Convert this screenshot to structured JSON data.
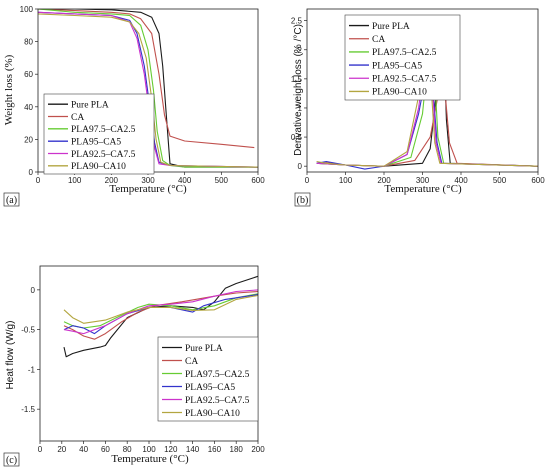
{
  "chart_data": [
    {
      "id": "a",
      "type": "line",
      "panel_label": "(a)",
      "xlabel": "Temperature (°C)",
      "ylabel": "Weight loss (%)",
      "xlim": [
        0,
        600
      ],
      "ylim": [
        0,
        100
      ],
      "xticks": [
        0,
        100,
        200,
        300,
        400,
        500,
        600
      ],
      "yticks": [
        0,
        20,
        40,
        60,
        80,
        100
      ],
      "legend_position": "bottom-left",
      "series": [
        {
          "name": "Pure PLA",
          "color": "#1a1a1a",
          "points": [
            [
              0,
              100
            ],
            [
              100,
              100
            ],
            [
              200,
              99.5
            ],
            [
              280,
              98
            ],
            [
              310,
              95
            ],
            [
              330,
              85
            ],
            [
              340,
              65
            ],
            [
              350,
              35
            ],
            [
              360,
              5
            ],
            [
              400,
              3
            ],
            [
              600,
              3
            ]
          ]
        },
        {
          "name": "CA",
          "color": "#c0504d",
          "points": [
            [
              0,
              100
            ],
            [
              100,
              99
            ],
            [
              200,
              98
            ],
            [
              250,
              97
            ],
            [
              280,
              94
            ],
            [
              310,
              85
            ],
            [
              330,
              60
            ],
            [
              345,
              35
            ],
            [
              360,
              22
            ],
            [
              400,
              19
            ],
            [
              500,
              17
            ],
            [
              590,
              15
            ]
          ]
        },
        {
          "name": "PLA97.5–CA2.5",
          "color": "#66cc33",
          "points": [
            [
              0,
              100
            ],
            [
              100,
              98
            ],
            [
              200,
              97
            ],
            [
              250,
              96
            ],
            [
              280,
              90
            ],
            [
              300,
              75
            ],
            [
              315,
              50
            ],
            [
              325,
              25
            ],
            [
              340,
              7
            ],
            [
              360,
              4
            ],
            [
              400,
              3
            ],
            [
              600,
              3
            ]
          ]
        },
        {
          "name": "PLA95–CA5",
          "color": "#3333cc",
          "points": [
            [
              0,
              98
            ],
            [
              100,
              97
            ],
            [
              200,
              96
            ],
            [
              250,
              93
            ],
            [
              270,
              85
            ],
            [
              290,
              65
            ],
            [
              305,
              40
            ],
            [
              318,
              18
            ],
            [
              330,
              6
            ],
            [
              360,
              4
            ],
            [
              600,
              3
            ]
          ]
        },
        {
          "name": "PLA92.5–CA7.5",
          "color": "#cc33cc",
          "points": [
            [
              0,
              98
            ],
            [
              100,
              97
            ],
            [
              200,
              96
            ],
            [
              250,
              92
            ],
            [
              270,
              82
            ],
            [
              290,
              60
            ],
            [
              305,
              35
            ],
            [
              318,
              15
            ],
            [
              330,
              5
            ],
            [
              360,
              4
            ],
            [
              600,
              3
            ]
          ]
        },
        {
          "name": "PLA90–CA10",
          "color": "#b3a640",
          "points": [
            [
              0,
              97
            ],
            [
              100,
              96
            ],
            [
              200,
              95
            ],
            [
              250,
              92
            ],
            [
              275,
              85
            ],
            [
              295,
              70
            ],
            [
              310,
              45
            ],
            [
              322,
              20
            ],
            [
              335,
              6
            ],
            [
              360,
              4
            ],
            [
              600,
              3
            ]
          ]
        }
      ]
    },
    {
      "id": "b",
      "type": "line",
      "panel_label": "(b)",
      "xlabel": "Temperature (°C)",
      "ylabel": "Derivative weight loss (% /°C)",
      "xlim": [
        0,
        600
      ],
      "ylim": [
        -0.1,
        2.7
      ],
      "xticks": [
        0,
        100,
        200,
        300,
        400,
        500,
        600
      ],
      "yticks": [
        0.0,
        0.5,
        1.0,
        1.5,
        2.0,
        2.5
      ],
      "legend_position": "top-right",
      "series": [
        {
          "name": "Pure PLA",
          "color": "#1a1a1a",
          "points": [
            [
              25,
              0.05
            ],
            [
              100,
              0.02
            ],
            [
              200,
              0
            ],
            [
              300,
              0.05
            ],
            [
              320,
              0.3
            ],
            [
              335,
              1.2
            ],
            [
              345,
              2.3
            ],
            [
              350,
              2.55
            ],
            [
              355,
              2.2
            ],
            [
              362,
              0.8
            ],
            [
              372,
              0.05
            ],
            [
              600,
              0
            ]
          ]
        },
        {
          "name": "CA",
          "color": "#c0504d",
          "points": [
            [
              25,
              0.05
            ],
            [
              50,
              0.06
            ],
            [
              100,
              0.02
            ],
            [
              200,
              0
            ],
            [
              280,
              0.1
            ],
            [
              320,
              0.5
            ],
            [
              340,
              1.2
            ],
            [
              350,
              1.6
            ],
            [
              357,
              1.4
            ],
            [
              370,
              0.4
            ],
            [
              390,
              0.05
            ],
            [
              600,
              0
            ]
          ]
        },
        {
          "name": "PLA97.5–CA2.5",
          "color": "#66cc33",
          "points": [
            [
              25,
              0.05
            ],
            [
              100,
              0.02
            ],
            [
              200,
              0
            ],
            [
              270,
              0.15
            ],
            [
              300,
              0.9
            ],
            [
              315,
              1.9
            ],
            [
              322,
              2.45
            ],
            [
              328,
              2.0
            ],
            [
              340,
              0.5
            ],
            [
              355,
              0.05
            ],
            [
              600,
              0
            ]
          ]
        },
        {
          "name": "PLA95–CA5",
          "color": "#3333cc",
          "points": [
            [
              25,
              0.05
            ],
            [
              50,
              0.08
            ],
            [
              100,
              0.02
            ],
            [
              150,
              -0.05
            ],
            [
              200,
              0
            ],
            [
              260,
              0.2
            ],
            [
              290,
              0.9
            ],
            [
              310,
              1.6
            ],
            [
              318,
              1.9
            ],
            [
              325,
              1.5
            ],
            [
              338,
              0.4
            ],
            [
              350,
              0.05
            ],
            [
              600,
              0
            ]
          ]
        },
        {
          "name": "PLA92.5–CA7.5",
          "color": "#cc33cc",
          "points": [
            [
              25,
              0.05
            ],
            [
              100,
              0.02
            ],
            [
              200,
              0
            ],
            [
              260,
              0.2
            ],
            [
              290,
              1.0
            ],
            [
              308,
              1.9
            ],
            [
              315,
              2.2
            ],
            [
              322,
              1.7
            ],
            [
              335,
              0.4
            ],
            [
              348,
              0.05
            ],
            [
              600,
              0
            ]
          ]
        },
        {
          "name": "PLA90–CA10",
          "color": "#b3a640",
          "points": [
            [
              25,
              0.08
            ],
            [
              50,
              0.05
            ],
            [
              100,
              0.02
            ],
            [
              200,
              0
            ],
            [
              260,
              0.25
            ],
            [
              290,
              1.2
            ],
            [
              305,
              1.95
            ],
            [
              312,
              2.1
            ],
            [
              320,
              1.6
            ],
            [
              332,
              0.4
            ],
            [
              345,
              0.05
            ],
            [
              600,
              0
            ]
          ]
        }
      ]
    },
    {
      "id": "c",
      "type": "line",
      "panel_label": "(c)",
      "xlabel": "Temperature (°C)",
      "ylabel": "Heat flow (W/g)",
      "xlim": [
        0,
        200
      ],
      "ylim": [
        -1.9,
        0.3
      ],
      "xticks": [
        0,
        20,
        40,
        60,
        80,
        100,
        120,
        140,
        160,
        180,
        200
      ],
      "yticks": [
        -1.5,
        -1.0,
        -0.5,
        0.0
      ],
      "legend_position": "bottom-right",
      "series": [
        {
          "name": "Pure PLA",
          "color": "#1a1a1a",
          "points": [
            [
              22,
              -0.72
            ],
            [
              24,
              -0.84
            ],
            [
              30,
              -0.8
            ],
            [
              40,
              -0.76
            ],
            [
              55,
              -0.72
            ],
            [
              60,
              -0.7
            ],
            [
              65,
              -0.6
            ],
            [
              80,
              -0.35
            ],
            [
              100,
              -0.22
            ],
            [
              120,
              -0.2
            ],
            [
              140,
              -0.22
            ],
            [
              150,
              -0.25
            ],
            [
              160,
              -0.15
            ],
            [
              170,
              0.02
            ],
            [
              180,
              0.08
            ],
            [
              200,
              0.17
            ]
          ]
        },
        {
          "name": "CA",
          "color": "#c0504d",
          "points": [
            [
              22,
              -0.45
            ],
            [
              30,
              -0.5
            ],
            [
              40,
              -0.58
            ],
            [
              50,
              -0.62
            ],
            [
              60,
              -0.55
            ],
            [
              75,
              -0.4
            ],
            [
              90,
              -0.28
            ],
            [
              105,
              -0.2
            ],
            [
              130,
              -0.15
            ],
            [
              160,
              -0.08
            ],
            [
              180,
              -0.04
            ],
            [
              200,
              -0.02
            ]
          ]
        },
        {
          "name": "PLA97.5–CA2.5",
          "color": "#66cc33",
          "points": [
            [
              22,
              -0.4
            ],
            [
              30,
              -0.45
            ],
            [
              40,
              -0.48
            ],
            [
              55,
              -0.45
            ],
            [
              70,
              -0.35
            ],
            [
              90,
              -0.22
            ],
            [
              100,
              -0.18
            ],
            [
              120,
              -0.2
            ],
            [
              140,
              -0.25
            ],
            [
              160,
              -0.2
            ],
            [
              180,
              -0.1
            ],
            [
              200,
              -0.05
            ]
          ]
        },
        {
          "name": "PLA95–CA5",
          "color": "#3333cc",
          "points": [
            [
              22,
              -0.5
            ],
            [
              30,
              -0.45
            ],
            [
              40,
              -0.48
            ],
            [
              50,
              -0.55
            ],
            [
              60,
              -0.45
            ],
            [
              80,
              -0.3
            ],
            [
              100,
              -0.22
            ],
            [
              120,
              -0.22
            ],
            [
              140,
              -0.28
            ],
            [
              150,
              -0.2
            ],
            [
              170,
              -0.12
            ],
            [
              200,
              -0.06
            ]
          ]
        },
        {
          "name": "PLA92.5–CA7.5",
          "color": "#cc33cc",
          "points": [
            [
              22,
              -0.5
            ],
            [
              30,
              -0.52
            ],
            [
              40,
              -0.55
            ],
            [
              60,
              -0.45
            ],
            [
              80,
              -0.3
            ],
            [
              100,
              -0.2
            ],
            [
              120,
              -0.18
            ],
            [
              140,
              -0.15
            ],
            [
              160,
              -0.08
            ],
            [
              180,
              -0.02
            ],
            [
              200,
              0.0
            ]
          ]
        },
        {
          "name": "PLA90–CA10",
          "color": "#b3a640",
          "points": [
            [
              22,
              -0.25
            ],
            [
              30,
              -0.35
            ],
            [
              40,
              -0.42
            ],
            [
              60,
              -0.38
            ],
            [
              80,
              -0.28
            ],
            [
              100,
              -0.22
            ],
            [
              120,
              -0.22
            ],
            [
              140,
              -0.26
            ],
            [
              160,
              -0.25
            ],
            [
              180,
              -0.12
            ],
            [
              200,
              -0.07
            ]
          ]
        }
      ]
    }
  ]
}
